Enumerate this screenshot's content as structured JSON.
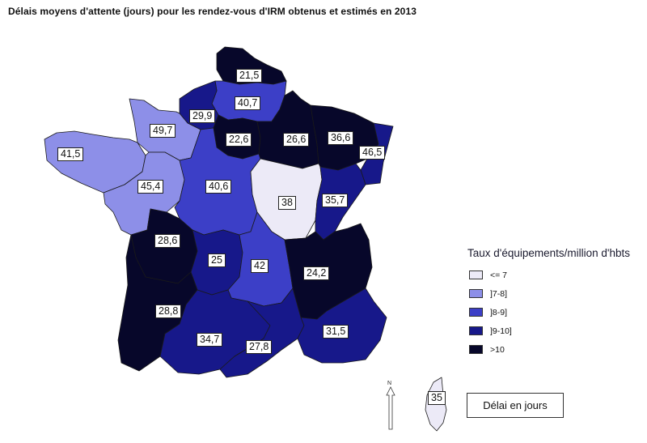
{
  "title": "Délais moyens d'attente (jours) pour les rendez-vous d'IRM obtenus et estimés en 2013",
  "legend": {
    "title": "Taux d'équipements/million d'hbts",
    "items": [
      {
        "label": "<= 7",
        "color": "#eceaf7"
      },
      {
        "label": "]7-8]",
        "color": "#8d8fe8"
      },
      {
        "label": "]8-9]",
        "color": "#3c3fc7"
      },
      {
        "label": "]9-10]",
        "color": "#17188a"
      },
      {
        "label": ">10",
        "color": "#07072a"
      }
    ]
  },
  "key_box": "Délai en jours",
  "north_label": "N",
  "regions": [
    {
      "name": "Nord-Pas-de-Calais",
      "value": "21,5",
      "color": "#07072a"
    },
    {
      "name": "Picardie",
      "value": "40,7",
      "color": "#3c3fc7"
    },
    {
      "name": "Haute-Normandie",
      "value": "29,9",
      "color": "#17188a"
    },
    {
      "name": "Basse-Normandie",
      "value": "49,7",
      "color": "#8d8fe8"
    },
    {
      "name": "Bretagne",
      "value": "41,5",
      "color": "#8d8fe8"
    },
    {
      "name": "Pays de la Loire",
      "value": "45,4",
      "color": "#8d8fe8"
    },
    {
      "name": "Ile-de-France",
      "value": "22,6",
      "color": "#07072a"
    },
    {
      "name": "Champagne-Ardenne",
      "value": "26,6",
      "color": "#07072a"
    },
    {
      "name": "Lorraine",
      "value": "36,6",
      "color": "#07072a"
    },
    {
      "name": "Alsace",
      "value": "46,5",
      "color": "#17188a"
    },
    {
      "name": "Centre",
      "value": "40,6",
      "color": "#3c3fc7"
    },
    {
      "name": "Bourgogne",
      "value": "38",
      "color": "#eceaf7"
    },
    {
      "name": "Franche-Comte",
      "value": "35,7",
      "color": "#17188a"
    },
    {
      "name": "Poitou-Charentes",
      "value": "28,6",
      "color": "#07072a"
    },
    {
      "name": "Limousin",
      "value": "25",
      "color": "#17188a"
    },
    {
      "name": "Auvergne",
      "value": "42",
      "color": "#3c3fc7"
    },
    {
      "name": "Rhone-Alpes",
      "value": "24,2",
      "color": "#07072a"
    },
    {
      "name": "Aquitaine",
      "value": "28,8",
      "color": "#07072a"
    },
    {
      "name": "Midi-Pyrenees",
      "value": "34,7",
      "color": "#17188a"
    },
    {
      "name": "Languedoc-Roussillon",
      "value": "27,8",
      "color": "#17188a"
    },
    {
      "name": "Provence-Alpes-Cote d'Azur",
      "value": "31,5",
      "color": "#17188a"
    },
    {
      "name": "Corse",
      "value": "35",
      "color": "#eceaf7"
    }
  ]
}
